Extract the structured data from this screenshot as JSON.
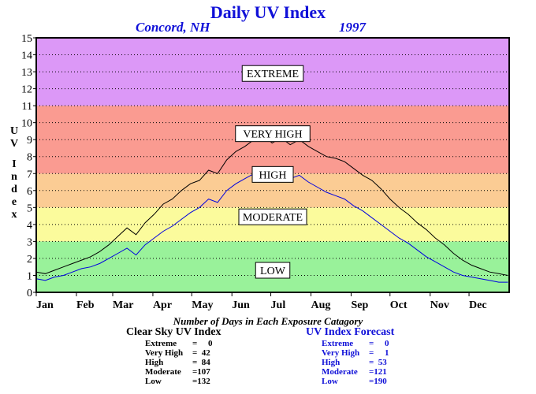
{
  "header": {
    "title": "Daily UV Index",
    "location": "Concord, NH",
    "year": "1997"
  },
  "chart_data": {
    "type": "line",
    "title": "Daily UV Index",
    "ylabel": "U V I n d e x",
    "ylabel_letters": [
      "U",
      "V",
      "I",
      "n",
      "d",
      "e",
      "x"
    ],
    "ylim": [
      0,
      15
    ],
    "yticks": [
      0,
      1,
      2,
      3,
      4,
      5,
      6,
      7,
      8,
      9,
      10,
      11,
      12,
      13,
      14,
      15
    ],
    "xticks": [
      "Jan",
      "Feb",
      "Mar",
      "Apr",
      "May",
      "Jun",
      "Jul",
      "Aug",
      "Sep",
      "Oct",
      "Nov",
      "Dec"
    ],
    "grid": "horizontal dotted",
    "bands": [
      {
        "label": "LOW",
        "from": 0,
        "to": 3,
        "color": "#99f29a"
      },
      {
        "label": "MODERATE",
        "from": 3,
        "to": 5,
        "color": "#fbfb9c"
      },
      {
        "label": "HIGH",
        "from": 5,
        "to": 7,
        "color": "#fbcc94"
      },
      {
        "label": "VERY HIGH",
        "from": 7,
        "to": 11,
        "color": "#fa9b91"
      },
      {
        "label": "EXTREME",
        "from": 11,
        "to": 15,
        "color": "#dc98f7"
      }
    ],
    "band_label_values": {
      "EXTREME": 12.9,
      "VERY HIGH": 9.35,
      "HIGH": 6.95,
      "MODERATE": 4.45,
      "LOW": 1.3
    },
    "series": [
      {
        "name": "Clear Sky UV Index",
        "color": "#000000",
        "x": [
          1,
          8,
          15,
          22,
          29,
          36,
          43,
          50,
          57,
          64,
          71,
          78,
          85,
          92,
          99,
          106,
          113,
          120,
          127,
          134,
          141,
          148,
          155,
          162,
          169,
          176,
          183,
          190,
          197,
          204,
          211,
          218,
          225,
          232,
          239,
          246,
          253,
          260,
          267,
          274,
          281,
          288,
          295,
          302,
          309,
          316,
          323,
          330,
          337,
          344,
          351,
          358,
          365
        ],
        "values": [
          1.2,
          1.1,
          1.3,
          1.5,
          1.7,
          1.9,
          2.1,
          2.4,
          2.8,
          3.3,
          3.8,
          3.4,
          4.1,
          4.6,
          5.2,
          5.5,
          6.0,
          6.4,
          6.6,
          7.2,
          7.0,
          7.8,
          8.3,
          8.6,
          9.0,
          9.3,
          8.8,
          9.1,
          8.7,
          9.0,
          8.6,
          8.3,
          8.0,
          7.9,
          7.7,
          7.3,
          6.9,
          6.6,
          6.1,
          5.5,
          5.0,
          4.6,
          4.1,
          3.7,
          3.2,
          2.8,
          2.3,
          1.9,
          1.6,
          1.4,
          1.2,
          1.1,
          1.0
        ]
      },
      {
        "name": "UV Index Forecast",
        "color": "#0000e0",
        "x": [
          1,
          8,
          15,
          22,
          29,
          36,
          43,
          50,
          57,
          64,
          71,
          78,
          85,
          92,
          99,
          106,
          113,
          120,
          127,
          134,
          141,
          148,
          155,
          162,
          169,
          176,
          183,
          190,
          197,
          204,
          211,
          218,
          225,
          232,
          239,
          246,
          253,
          260,
          267,
          274,
          281,
          288,
          295,
          302,
          309,
          316,
          323,
          330,
          337,
          344,
          351,
          358,
          365
        ],
        "values": [
          0.8,
          0.7,
          0.9,
          1.0,
          1.2,
          1.4,
          1.5,
          1.7,
          2.0,
          2.3,
          2.6,
          2.2,
          2.8,
          3.2,
          3.6,
          3.9,
          4.3,
          4.7,
          5.0,
          5.5,
          5.3,
          6.0,
          6.4,
          6.7,
          7.0,
          7.2,
          6.8,
          7.1,
          6.7,
          6.9,
          6.5,
          6.2,
          5.9,
          5.7,
          5.5,
          5.1,
          4.8,
          4.4,
          4.0,
          3.6,
          3.2,
          2.9,
          2.5,
          2.1,
          1.8,
          1.5,
          1.2,
          1.0,
          0.9,
          0.8,
          0.7,
          0.6,
          0.6
        ]
      }
    ]
  },
  "footer": {
    "caption": "Number of Days in Each Exposure Catagory",
    "clear_sky": {
      "title": "Clear Sky UV Index",
      "rows": [
        {
          "label": "Extreme",
          "value": "=     0"
        },
        {
          "label": "Very High",
          "value": "=  42"
        },
        {
          "label": "High",
          "value": "=  84"
        },
        {
          "label": "Moderate",
          "value": "=107"
        },
        {
          "label": "Low",
          "value": "=132"
        }
      ]
    },
    "forecast": {
      "title": "UV Index Forecast",
      "rows": [
        {
          "label": "Extreme",
          "value": "=     0"
        },
        {
          "label": "Very High",
          "value": "=     1"
        },
        {
          "label": "High",
          "value": "=  53"
        },
        {
          "label": "Moderate",
          "value": "=121"
        },
        {
          "label": "Low",
          "value": "=190"
        }
      ]
    }
  }
}
